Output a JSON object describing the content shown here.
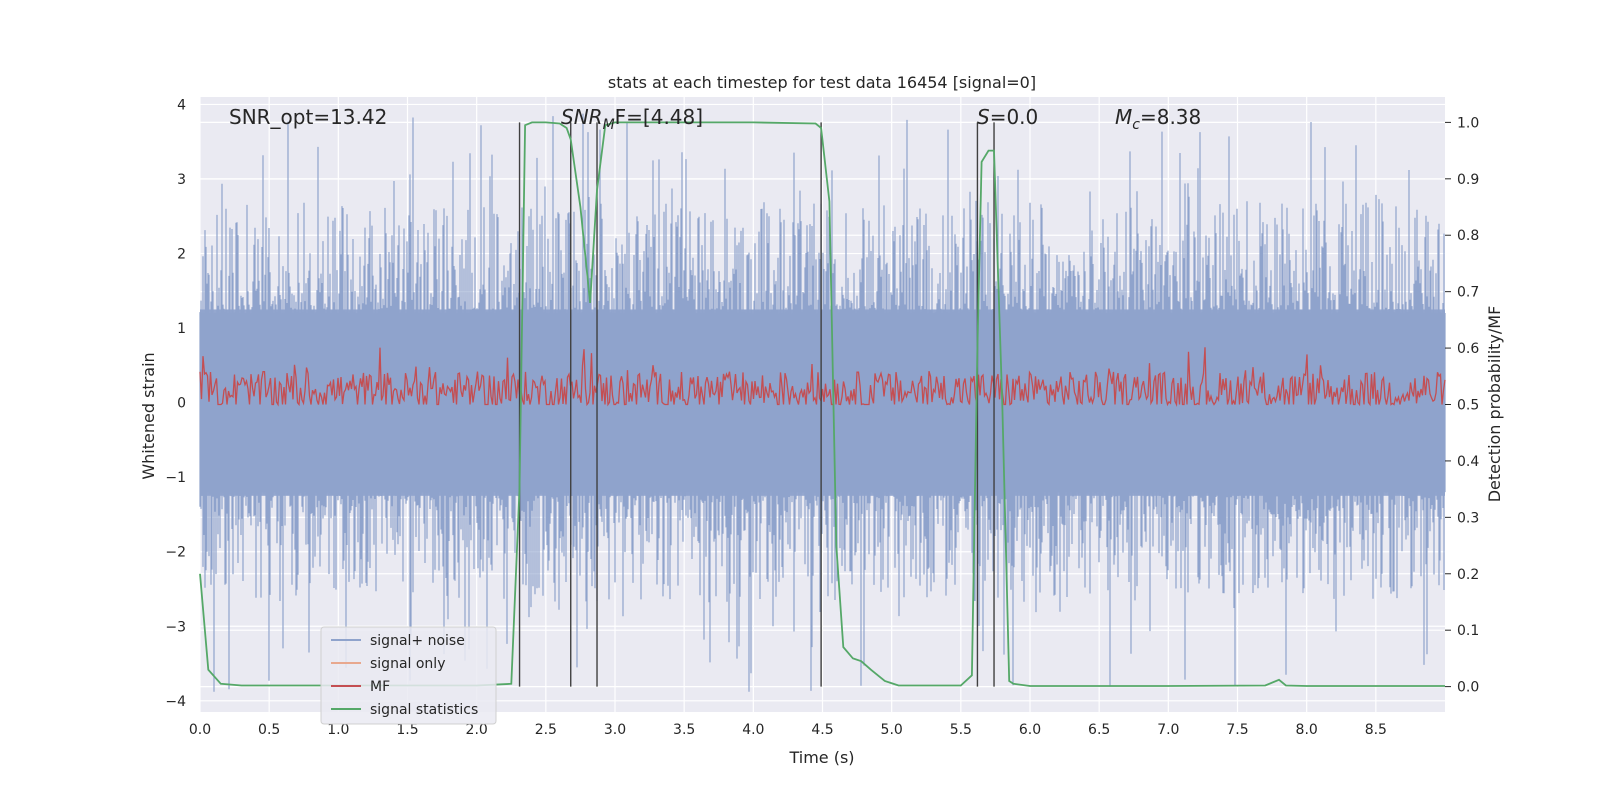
{
  "chart_data": {
    "type": "line",
    "title": "stats at each timestep for test data 16454 [signal=0]",
    "xlabel": "Time (s)",
    "ylabel_left": "Whitened strain",
    "ylabel_right": "Detection probability/MF",
    "xlim": [
      0.0,
      9.0
    ],
    "ylim_left": [
      -4.15,
      4.1
    ],
    "ylim_right": [
      -0.045,
      1.045
    ],
    "x_ticks": [
      "0.0",
      "0.5",
      "1.0",
      "1.5",
      "2.0",
      "2.5",
      "3.0",
      "3.5",
      "4.0",
      "4.5",
      "5.0",
      "5.5",
      "6.0",
      "6.5",
      "7.0",
      "7.5",
      "8.0",
      "8.5"
    ],
    "y_ticks_left": [
      "4",
      "3",
      "2",
      "1",
      "0",
      "−1",
      "−2",
      "−3",
      "−4"
    ],
    "y_ticks_right": [
      "1.0",
      "0.9",
      "0.8",
      "0.7",
      "0.6",
      "0.5",
      "0.4",
      "0.3",
      "0.2",
      "0.1",
      "0.0"
    ],
    "annotations": {
      "snr_opt": "SNR_opt=13.42",
      "snr_mf_base": "SNR",
      "snr_mf_sub": "M",
      "snr_mf_rest": "F=[4.48]",
      "s_italic": "S",
      "s_rest": "=0.0",
      "mc_base": "M",
      "mc_sub": "c",
      "mc_rest": "=8.38"
    },
    "legend": {
      "location": "lower left",
      "entries": [
        {
          "label": "signal+ noise",
          "color": "#8FA3CC"
        },
        {
          "label": "signal only",
          "color": "#E8A88E"
        },
        {
          "label": "MF",
          "color": "#C44E52"
        },
        {
          "label": "signal statistics",
          "color": "#55A868"
        }
      ]
    },
    "vertical_lines_s": [
      2.31,
      2.68,
      2.87,
      4.49,
      5.62,
      5.74
    ],
    "signal_statistics": {
      "x": [
        0.0,
        0.06,
        0.15,
        0.3,
        1.0,
        2.0,
        2.25,
        2.31,
        2.35,
        2.4,
        2.5,
        2.6,
        2.65,
        2.68,
        2.75,
        2.82,
        2.87,
        2.93,
        3.0,
        4.0,
        4.45,
        4.49,
        4.55,
        4.6,
        4.65,
        4.72,
        4.78,
        4.85,
        4.95,
        5.05,
        5.5,
        5.58,
        5.62,
        5.65,
        5.7,
        5.74,
        5.8,
        5.85,
        5.88,
        6.0,
        7.0,
        7.7,
        7.8,
        7.85,
        8.0,
        9.0
      ],
      "y": [
        0.2,
        0.03,
        0.005,
        0.002,
        0.002,
        0.002,
        0.005,
        0.35,
        0.995,
        1.0,
        1.0,
        0.998,
        0.99,
        0.97,
        0.85,
        0.68,
        0.88,
        0.995,
        1.0,
        1.0,
        0.998,
        0.99,
        0.86,
        0.25,
        0.07,
        0.05,
        0.045,
        0.03,
        0.01,
        0.002,
        0.002,
        0.02,
        0.6,
        0.93,
        0.95,
        0.95,
        0.5,
        0.01,
        0.005,
        0.001,
        0.001,
        0.002,
        0.012,
        0.002,
        0.001,
        0.001
      ]
    },
    "noise_profile": {
      "envelope_upper_range": [
        1.2,
        3.9
      ],
      "envelope_lower_range": [
        -1.2,
        -3.9
      ],
      "seed": 16454
    },
    "mf_profile": {
      "baseline": 0.52,
      "range": [
        0.5,
        0.62
      ]
    }
  },
  "colors": {
    "plot_bg": "#EAEAF2",
    "grid": "#FFFFFF",
    "noise": "#8FA3CC",
    "signal_only": "#E8A88E",
    "mf": "#C44E52",
    "stats": "#55A868",
    "vline": "#404040"
  }
}
